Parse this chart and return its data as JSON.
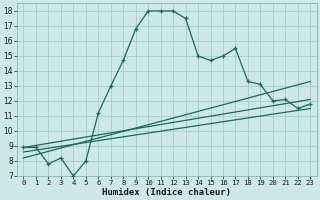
{
  "title": "",
  "xlabel": "Humidex (Indice chaleur)",
  "bg_color": "#cce8e8",
  "line_color": "#1a6b5a",
  "grid_color": "#a8cccc",
  "xlim": [
    -0.5,
    23.5
  ],
  "ylim": [
    7,
    18.5
  ],
  "xticks": [
    0,
    1,
    2,
    3,
    4,
    5,
    6,
    7,
    8,
    9,
    10,
    11,
    12,
    13,
    14,
    15,
    16,
    17,
    18,
    19,
    20,
    21,
    22,
    23
  ],
  "yticks": [
    7,
    8,
    9,
    10,
    11,
    12,
    13,
    14,
    15,
    16,
    17,
    18
  ],
  "series1_x": [
    0,
    1,
    2,
    3,
    4,
    5,
    6,
    7,
    8,
    9,
    10,
    11,
    12,
    13,
    14,
    15,
    16,
    17,
    18,
    19,
    20,
    21,
    22,
    23
  ],
  "series1_y": [
    8.9,
    8.9,
    7.8,
    8.2,
    7.0,
    8.0,
    11.2,
    13.0,
    14.7,
    16.8,
    18.0,
    18.0,
    18.0,
    17.5,
    15.0,
    14.7,
    15.0,
    15.5,
    13.3,
    13.1,
    12.0,
    12.1,
    11.5,
    11.8
  ],
  "series2_x": [
    0,
    23
  ],
  "series2_y": [
    8.9,
    12.1
  ],
  "series3_x": [
    0,
    23
  ],
  "series3_y": [
    8.6,
    11.5
  ],
  "series4_x": [
    0,
    23
  ],
  "series4_y": [
    8.2,
    13.3
  ]
}
